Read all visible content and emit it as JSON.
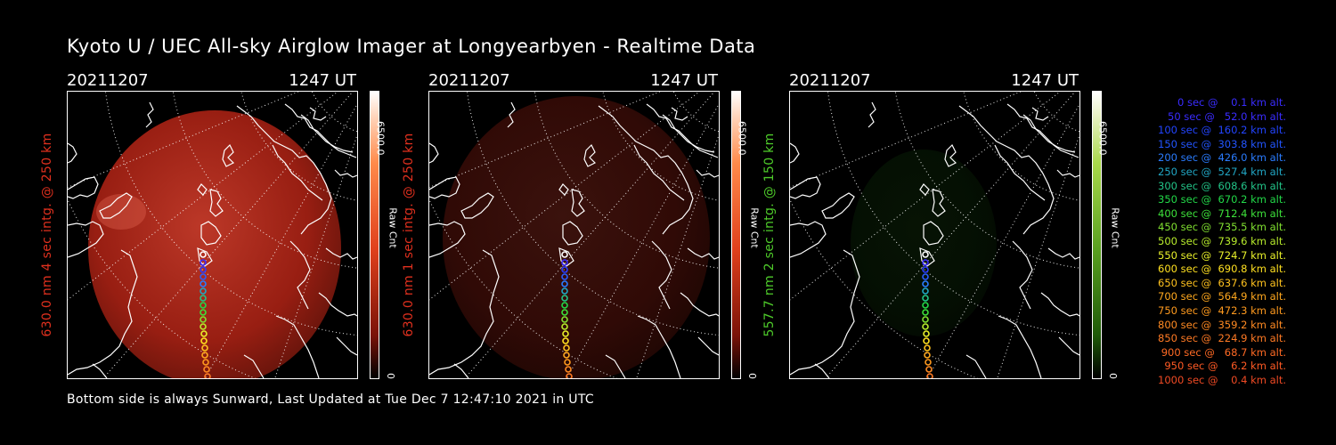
{
  "title": "Kyoto U / UEC All-sky Airglow Imager at Longyearbyen - Realtime Data",
  "footer": "Bottom side is always Sunward, Last Updated at Tue Dec  7 12:47:10 2021 in UTC",
  "panels": [
    {
      "date": "20211207",
      "time": "1247 UT",
      "label": "630.0 nm 4 sec intg. @ 250 km",
      "label_color": "#e0301e",
      "colorbar_max": "6500.0",
      "colorbar_min": "0",
      "colorbar_unit": "Raw Cnt",
      "colormap": "red",
      "glow_level": 0.8
    },
    {
      "date": "20211207",
      "time": "1247 UT",
      "label": "630.0 nm 1 sec intg. @ 250 km",
      "label_color": "#e0301e",
      "colorbar_max": "6500.0",
      "colorbar_min": "0",
      "colorbar_unit": "Raw Cnt",
      "colormap": "red",
      "glow_level": 0.25
    },
    {
      "date": "20211207",
      "time": "1247 UT",
      "label": "557.7 nm 2 sec intg. @ 150 km",
      "label_color": "#4ecb2a",
      "colorbar_max": "6500.0",
      "colorbar_min": "0",
      "colorbar_unit": "Raw Cnt",
      "colormap": "green",
      "glow_level": 0.25
    }
  ],
  "legend": [
    {
      "text": "0 sec @    0.1 km alt.",
      "color": "#3a2cff"
    },
    {
      "text": "50 sec @   52.0 km alt.",
      "color": "#3a2cff"
    },
    {
      "text": "100 sec @  160.2 km alt.",
      "color": "#2244ff"
    },
    {
      "text": "150 sec @  303.8 km alt.",
      "color": "#2255ff"
    },
    {
      "text": "200 sec @  426.0 km alt.",
      "color": "#2a7cff"
    },
    {
      "text": "250 sec @  527.4 km alt.",
      "color": "#21a6c4"
    },
    {
      "text": "300 sec @  608.6 km alt.",
      "color": "#22c488"
    },
    {
      "text": "350 sec @  670.2 km alt.",
      "color": "#22d848"
    },
    {
      "text": "400 sec @  712.4 km alt.",
      "color": "#3de03a"
    },
    {
      "text": "450 sec @  735.5 km alt.",
      "color": "#80e030"
    },
    {
      "text": "500 sec @  739.6 km alt.",
      "color": "#b8ec2c"
    },
    {
      "text": "550 sec @  724.7 km alt.",
      "color": "#e8f02a"
    },
    {
      "text": "600 sec @  690.8 km alt.",
      "color": "#ffe020"
    },
    {
      "text": "650 sec @  637.6 km alt.",
      "color": "#ffc21e"
    },
    {
      "text": "700 sec @  564.9 km alt.",
      "color": "#ffa81e"
    },
    {
      "text": "750 sec @  472.3 km alt.",
      "color": "#ff9a1e"
    },
    {
      "text": "800 sec @  359.2 km alt.",
      "color": "#ff8a22"
    },
    {
      "text": "850 sec @  224.9 km alt.",
      "color": "#ff7a24"
    },
    {
      "text": "900 sec @   68.7 km alt.",
      "color": "#ff6a24"
    },
    {
      "text": "950 sec @    6.2 km alt.",
      "color": "#ff5a24"
    },
    {
      "text": "1000 sec @    0.4 km alt.",
      "color": "#f04a24"
    }
  ]
}
